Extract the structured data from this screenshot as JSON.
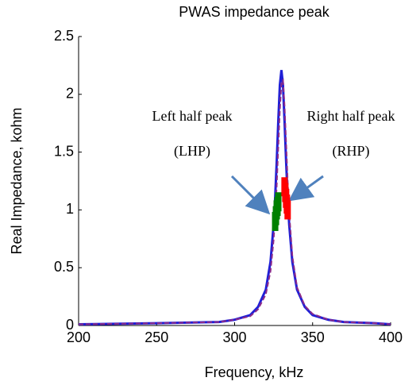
{
  "chart_data": {
    "type": "line",
    "title": "PWAS impedance peak",
    "xlabel": "Frequency, kHz",
    "ylabel": "Real Impedance, kohm",
    "x": [
      200,
      250,
      290,
      300,
      310,
      315,
      320,
      323,
      325,
      326,
      327,
      328,
      329,
      330,
      331,
      332,
      333,
      334,
      335,
      337,
      340,
      345,
      350,
      360,
      370,
      390,
      400
    ],
    "series": [
      {
        "color": "#1f1fd6",
        "values": [
          0.01,
          0.02,
          0.03,
          0.05,
          0.09,
          0.16,
          0.31,
          0.55,
          0.87,
          1.11,
          1.42,
          1.77,
          2.08,
          2.21,
          2.08,
          1.77,
          1.42,
          1.11,
          0.87,
          0.55,
          0.31,
          0.16,
          0.09,
          0.05,
          0.03,
          0.02,
          0.01
        ]
      },
      {
        "color": "#8b2a8b",
        "values": [
          0.01,
          0.02,
          0.03,
          0.05,
          0.08,
          0.14,
          0.27,
          0.47,
          0.74,
          0.95,
          1.22,
          1.55,
          1.87,
          2.1,
          2.12,
          1.9,
          1.58,
          1.25,
          0.97,
          0.6,
          0.33,
          0.17,
          0.1,
          0.05,
          0.03,
          0.02,
          0.01
        ]
      }
    ],
    "highlights": [
      {
        "color": "#008000",
        "x": [
          326,
          326.5,
          327,
          327.5,
          328
        ],
        "values": [
          0.9,
          0.95,
          1.0,
          1.03,
          1.07
        ]
      },
      {
        "color": "#ff0000",
        "x": [
          332,
          332.5,
          333,
          333.5,
          334
        ],
        "values": [
          1.2,
          1.15,
          1.1,
          1.05,
          1.0
        ]
      }
    ],
    "annotations": [
      "Left half peak",
      "(LHP)",
      "Right half peak",
      "(RHP)"
    ],
    "xlim": [
      200,
      400
    ],
    "ylim": [
      0,
      2.5
    ],
    "xticks": [
      200,
      250,
      300,
      350,
      400
    ],
    "yticks": [
      0,
      0.5,
      1,
      1.5,
      2,
      2.5
    ]
  }
}
